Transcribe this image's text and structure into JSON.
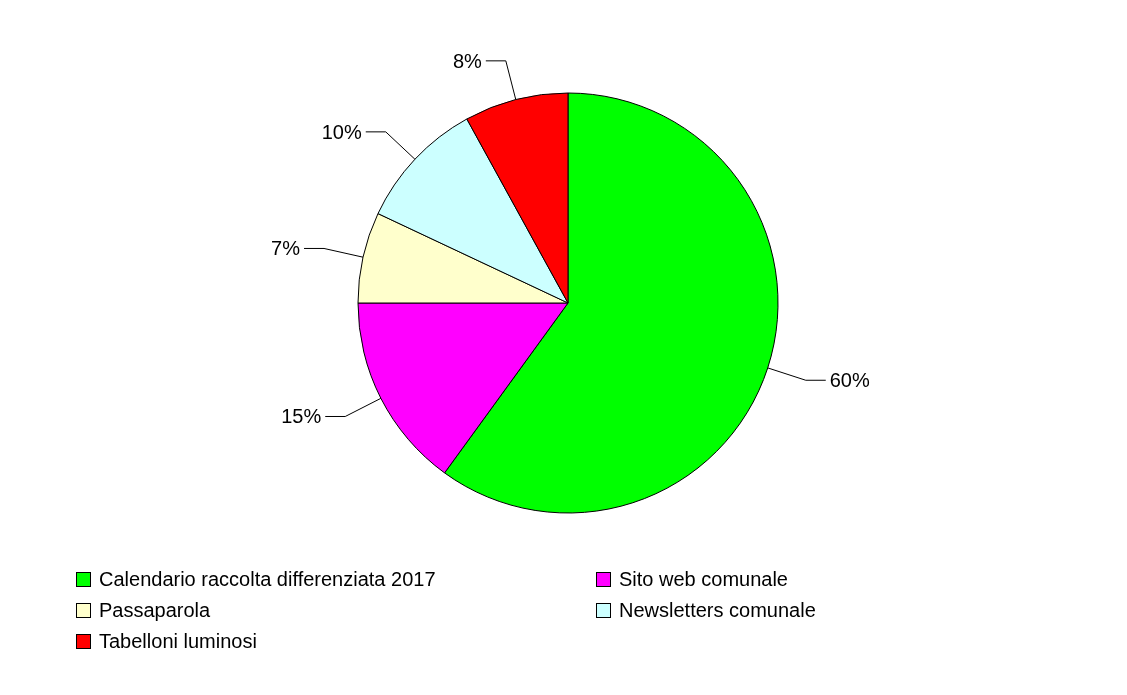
{
  "chart_data": {
    "type": "pie",
    "categories": [
      "Calendario raccolta differenziata 2017",
      "Sito web comunale",
      "Passaparola",
      "Newsletters comunale",
      "Tabelloni luminosi"
    ],
    "values": [
      60,
      15,
      7,
      10,
      8
    ],
    "colors": [
      "#00ff00",
      "#ff00ff",
      "#ffffcc",
      "#ccffff",
      "#ff0000"
    ],
    "value_labels": [
      "60%",
      "15%",
      "7%",
      "10%",
      "8%"
    ],
    "legend": "bottom"
  }
}
